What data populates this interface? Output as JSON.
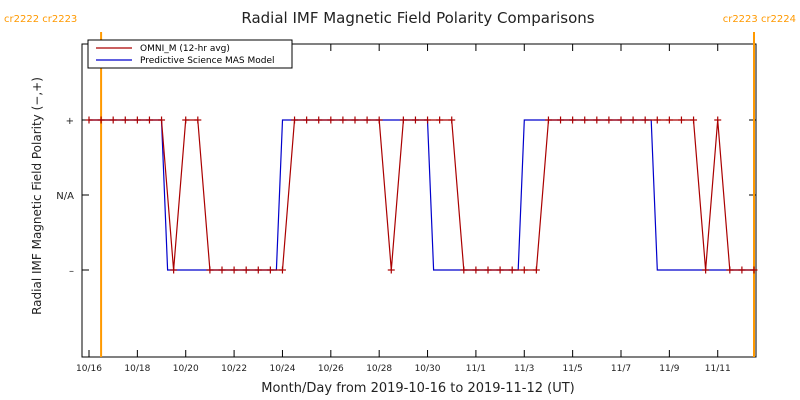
{
  "chart_data": {
    "type": "line",
    "title": "Radial IMF Magnetic Field Polarity Comparisons",
    "xlabel": "Month/Day from 2019-10-16 to 2019-11-12 (UT)",
    "ylabel": "Radial IMF Magnetic Field Polarity (−,+)",
    "x_start": "2019-10-16",
    "x_end": "2019-11-12",
    "ylim": [
      -2,
      2
    ],
    "y_ticks": [
      {
        "value": 1,
        "label": "+"
      },
      {
        "value": 0,
        "label": "N/A"
      },
      {
        "value": -1,
        "label": "–"
      }
    ],
    "x_ticks": [
      {
        "date": "2019-10-16",
        "label": "10/16"
      },
      {
        "date": "2019-10-18",
        "label": "10/18"
      },
      {
        "date": "2019-10-20",
        "label": "10/20"
      },
      {
        "date": "2019-10-22",
        "label": "10/22"
      },
      {
        "date": "2019-10-24",
        "label": "10/24"
      },
      {
        "date": "2019-10-26",
        "label": "10/26"
      },
      {
        "date": "2019-10-28",
        "label": "10/28"
      },
      {
        "date": "2019-10-30",
        "label": "10/30"
      },
      {
        "date": "2019-11-01",
        "label": "11/1"
      },
      {
        "date": "2019-11-03",
        "label": "11/3"
      },
      {
        "date": "2019-11-05",
        "label": "11/5"
      },
      {
        "date": "2019-11-07",
        "label": "11/7"
      },
      {
        "date": "2019-11-09",
        "label": "11/9"
      },
      {
        "date": "2019-11-11",
        "label": "11/11"
      }
    ],
    "carrington_markers": [
      {
        "date": "2019-10-16 12:00",
        "label": "cr2222 cr2223",
        "color": "#ff9900",
        "label_side": "left"
      },
      {
        "date": "2019-11-12 12:00",
        "label": "cr2223 cr2224",
        "color": "#ff9900",
        "label_side": "right"
      }
    ],
    "legend_position": "top-left",
    "series": [
      {
        "name": "OMNI_M (12-hr avg)",
        "color": "#aa0000",
        "markers": true,
        "points": [
          [
            "2019-10-16 00:00",
            1
          ],
          [
            "2019-10-16 12:00",
            1
          ],
          [
            "2019-10-17 00:00",
            1
          ],
          [
            "2019-10-17 12:00",
            1
          ],
          [
            "2019-10-18 00:00",
            1
          ],
          [
            "2019-10-18 12:00",
            1
          ],
          [
            "2019-10-19 00:00",
            1
          ],
          [
            "2019-10-19 12:00",
            -1
          ],
          [
            "2019-10-20 00:00",
            1
          ],
          [
            "2019-10-20 12:00",
            1
          ],
          [
            "2019-10-21 00:00",
            -1
          ],
          [
            "2019-10-21 12:00",
            -1
          ],
          [
            "2019-10-22 00:00",
            -1
          ],
          [
            "2019-10-22 12:00",
            -1
          ],
          [
            "2019-10-23 00:00",
            -1
          ],
          [
            "2019-10-23 12:00",
            -1
          ],
          [
            "2019-10-24 00:00",
            -1
          ],
          [
            "2019-10-24 12:00",
            1
          ],
          [
            "2019-10-25 00:00",
            1
          ],
          [
            "2019-10-25 12:00",
            1
          ],
          [
            "2019-10-26 00:00",
            1
          ],
          [
            "2019-10-26 12:00",
            1
          ],
          [
            "2019-10-27 00:00",
            1
          ],
          [
            "2019-10-27 12:00",
            1
          ],
          [
            "2019-10-28 00:00",
            1
          ],
          [
            "2019-10-28 12:00",
            -1
          ],
          [
            "2019-10-29 00:00",
            1
          ],
          [
            "2019-10-29 12:00",
            1
          ],
          [
            "2019-10-30 00:00",
            1
          ],
          [
            "2019-10-30 12:00",
            1
          ],
          [
            "2019-10-31 00:00",
            1
          ],
          [
            "2019-10-31 12:00",
            -1
          ],
          [
            "2019-11-01 00:00",
            -1
          ],
          [
            "2019-11-01 12:00",
            -1
          ],
          [
            "2019-11-02 00:00",
            -1
          ],
          [
            "2019-11-02 12:00",
            -1
          ],
          [
            "2019-11-03 00:00",
            -1
          ],
          [
            "2019-11-03 12:00",
            -1
          ],
          [
            "2019-11-04 00:00",
            1
          ],
          [
            "2019-11-04 12:00",
            1
          ],
          [
            "2019-11-05 00:00",
            1
          ],
          [
            "2019-11-05 12:00",
            1
          ],
          [
            "2019-11-06 00:00",
            1
          ],
          [
            "2019-11-06 12:00",
            1
          ],
          [
            "2019-11-07 00:00",
            1
          ],
          [
            "2019-11-07 12:00",
            1
          ],
          [
            "2019-11-08 00:00",
            1
          ],
          [
            "2019-11-08 12:00",
            1
          ],
          [
            "2019-11-09 00:00",
            1
          ],
          [
            "2019-11-09 12:00",
            1
          ],
          [
            "2019-11-10 00:00",
            1
          ],
          [
            "2019-11-10 12:00",
            -1
          ],
          [
            "2019-11-11 00:00",
            1
          ],
          [
            "2019-11-11 12:00",
            -1
          ],
          [
            "2019-11-12 00:00",
            -1
          ],
          [
            "2019-11-12 12:00",
            -1
          ]
        ]
      },
      {
        "name": "Predictive Science MAS Model",
        "color": "#0000cc",
        "markers": false,
        "points": [
          [
            "2019-10-16 00:00",
            1
          ],
          [
            "2019-10-19 00:00",
            1
          ],
          [
            "2019-10-19 06:00",
            -1
          ],
          [
            "2019-10-23 18:00",
            -1
          ],
          [
            "2019-10-24 00:00",
            1
          ],
          [
            "2019-10-30 00:00",
            1
          ],
          [
            "2019-10-30 06:00",
            -1
          ],
          [
            "2019-11-02 18:00",
            -1
          ],
          [
            "2019-11-03 00:00",
            1
          ],
          [
            "2019-11-08 06:00",
            1
          ],
          [
            "2019-11-08 12:00",
            -1
          ],
          [
            "2019-11-12 12:00",
            -1
          ]
        ]
      }
    ]
  }
}
